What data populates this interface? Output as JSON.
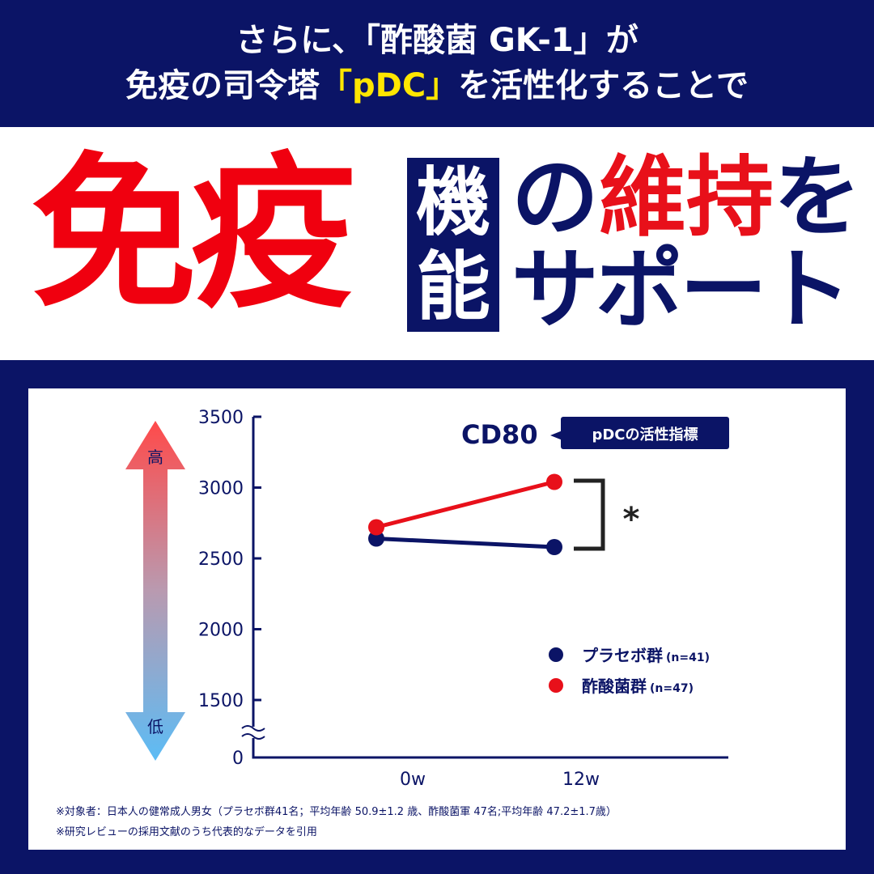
{
  "header": {
    "line1": "さらに、「酢酸菌 GK-1」が",
    "line2_pre": "免疫の司令塔",
    "line2_hl": "「pDC」",
    "line2_post": "を活性化することで"
  },
  "hero": {
    "word1": "免疫",
    "box_chars": [
      "機",
      "能"
    ],
    "no": "の",
    "keep": "維持",
    "wo": "を",
    "support": "サポート"
  },
  "colors": {
    "navy": "#0b1466",
    "red": "#e8101a",
    "yellow": "#ffe600"
  },
  "chart_data": {
    "type": "line",
    "title": "CD80",
    "callout": "pDCの活性指標",
    "categories": [
      "0w",
      "12w"
    ],
    "y_ticks": [
      "3500",
      "3000",
      "2500",
      "2000",
      "1500",
      "0"
    ],
    "ylim": [
      1500,
      3500
    ],
    "axis_break": true,
    "series": [
      {
        "name": "プラセボ群",
        "n": "(n=41)",
        "color": "#0b1466",
        "values": [
          2640,
          2580
        ]
      },
      {
        "name": "酢酸菌群",
        "n": "(n=47)",
        "color": "#e8101a",
        "values": [
          2720,
          3040
        ]
      }
    ],
    "significance": "*",
    "legend": "right",
    "scale_arrow": {
      "high": "高",
      "low": "低"
    }
  },
  "footnotes": [
    "※対象者：日本人の健常成人男女（プラセボ群41名；平均年齢 50.9±1.2 歳、酢酸菌軍 47名;平均年齢 47.2±1.7歳）",
    "※研究レビューの採用文献のうち代表的なデータを引用"
  ]
}
